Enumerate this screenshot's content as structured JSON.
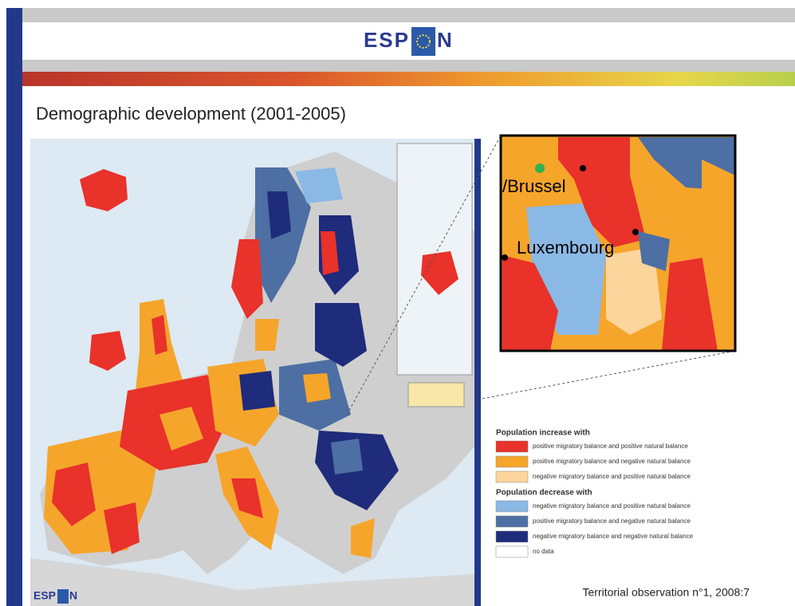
{
  "header": {
    "logo": {
      "left": "ESP",
      "right": "N"
    }
  },
  "title": "Demographic development (2001-2005)",
  "inset": {
    "labels": [
      "/Brussel",
      "Luxembourg"
    ]
  },
  "legend": {
    "groups": [
      {
        "heading": "Population increase with",
        "items": [
          {
            "label": "positive migratory balance and positive natural balance",
            "color": "#e8322a"
          },
          {
            "label": "positive migratory balance and negative natural balance",
            "color": "#f6a52b"
          },
          {
            "label": "negative migratory balance and positive natural balance",
            "color": "#fcd59c"
          }
        ]
      },
      {
        "heading": "Population decrease with",
        "items": [
          {
            "label": "negative migratory balance and positive natural balance",
            "color": "#8bb9e6"
          },
          {
            "label": "positive migratory balance and negative natural balance",
            "color": "#4d6fa3"
          },
          {
            "label": "negative migratory balance and negative natural balance",
            "color": "#1f2b7b"
          },
          {
            "label": "no data",
            "color": "#ffffff"
          }
        ]
      }
    ]
  },
  "map_logo": {
    "left": "ESP",
    "right": "N"
  },
  "footer": "Territorial observation n°1, 2008:7"
}
